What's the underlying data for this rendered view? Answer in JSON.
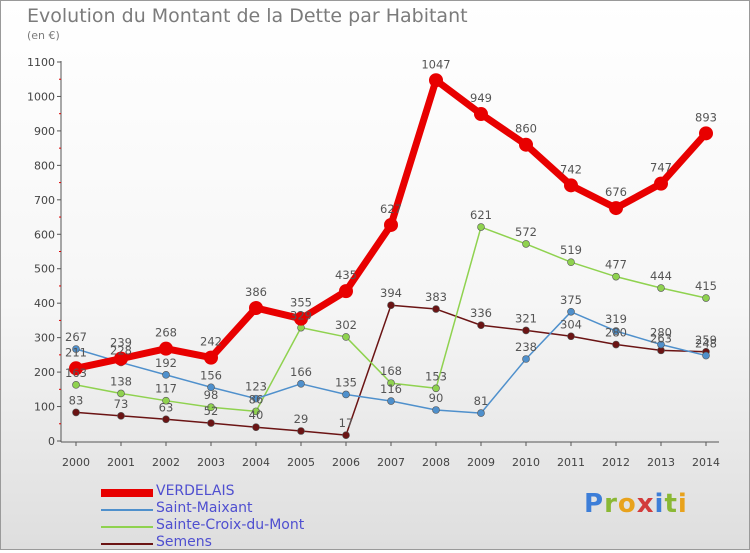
{
  "chart_data": {
    "type": "line",
    "title": "Evolution du Montant de la Dette par Habitant",
    "unit_label": "(en €)",
    "x": [
      2000,
      2001,
      2002,
      2003,
      2004,
      2005,
      2006,
      2007,
      2008,
      2009,
      2010,
      2011,
      2012,
      2013,
      2014
    ],
    "ylim": [
      0,
      1100
    ],
    "yticks": [
      0,
      100,
      200,
      300,
      400,
      500,
      600,
      700,
      800,
      900,
      1000,
      1100
    ],
    "grid": false,
    "legend": "bottom-left",
    "series": [
      {
        "name": "VERDELAIS",
        "color": "#e80000",
        "values": [
          211,
          239,
          268,
          242,
          386,
          355,
          435,
          627,
          1047,
          949,
          860,
          742,
          676,
          747,
          893
        ]
      },
      {
        "name": "Saint-Maixant",
        "color": "#4f90cc",
        "values": [
          267,
          228,
          192,
          156,
          123,
          166,
          135,
          116,
          90,
          81,
          238,
          375,
          319,
          280,
          248
        ]
      },
      {
        "name": "Sainte-Croix-du-Mont",
        "color": "#8fd24f",
        "values": [
          163,
          138,
          117,
          98,
          86,
          329,
          302,
          168,
          153,
          621,
          572,
          519,
          477,
          444,
          415
        ]
      },
      {
        "name": "Semens",
        "color": "#6b1414",
        "values": [
          83,
          73,
          63,
          52,
          40,
          29,
          17,
          394,
          383,
          336,
          321,
          304,
          280,
          263,
          259
        ]
      }
    ]
  },
  "logo": {
    "letters": [
      "P",
      "r",
      "o",
      "x",
      "i",
      "t",
      "i"
    ]
  }
}
